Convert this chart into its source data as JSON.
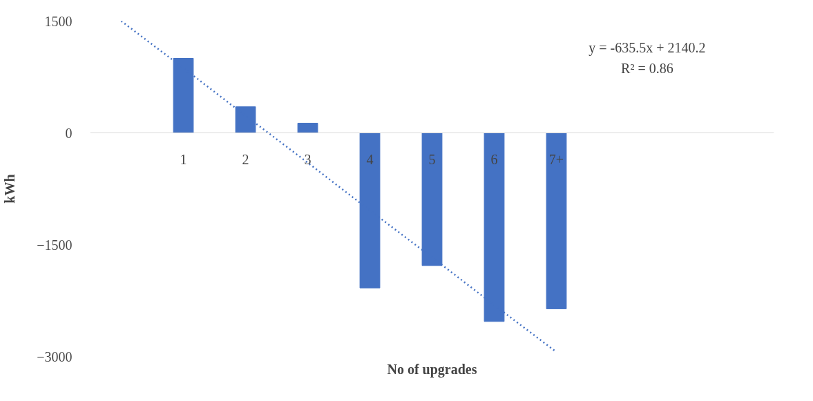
{
  "chart_data": {
    "type": "bar",
    "xlabel": "No of upgrades",
    "ylabel": "kWh",
    "categories": [
      null,
      "1",
      "2",
      "3",
      "4",
      "5",
      "6",
      "7+",
      null,
      null,
      null
    ],
    "series": [
      {
        "color": "#4472c4",
        "values": [
          null,
          1000,
          350,
          130,
          -2080,
          -1780,
          -2530,
          -2360,
          null,
          null,
          null
        ]
      },
      {
        "type": "line",
        "color": "#4472c4",
        "line_style": "dotted",
        "values": [
          1500,
          870,
          230,
          -400,
          -1040,
          -1670,
          -2310,
          -2940,
          null,
          null,
          null
        ]
      }
    ],
    "ylim": [
      -3000,
      1500
    ],
    "yticks": [
      1500,
      0,
      -1500,
      -3000
    ],
    "annotations": [
      "y = -635.5x + 2140.2",
      "R² = 0.86"
    ],
    "grid": false
  }
}
